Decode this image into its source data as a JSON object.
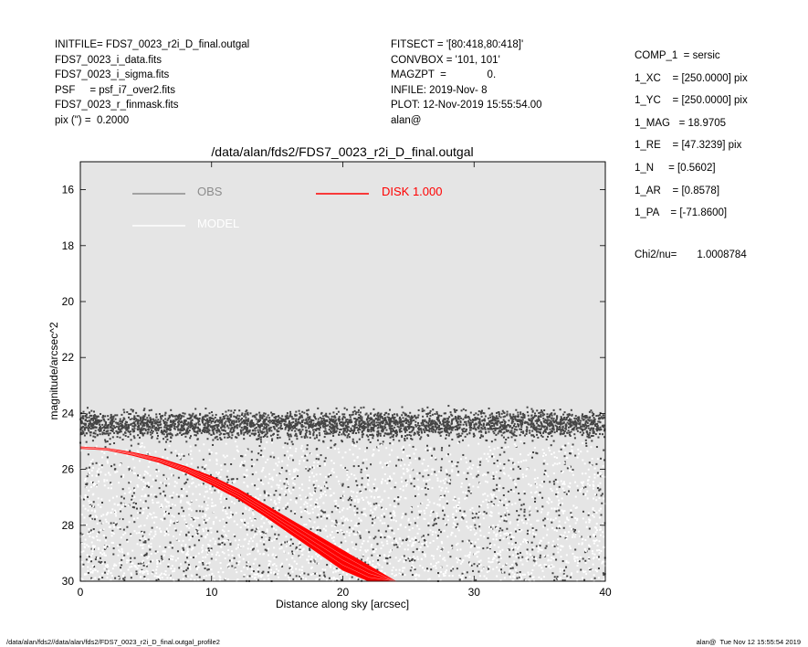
{
  "header_left": [
    "INITFILE= FDS7_0023_r2i_D_final.outgal",
    "FDS7_0023_i_data.fits",
    "FDS7_0023_i_sigma.fits",
    "PSF     = psf_i7_over2.fits",
    "FDS7_0023_r_finmask.fits",
    "pix (\") =  0.2000"
  ],
  "header_mid": [
    "FITSECT = '[80:418,80:418]'",
    "CONVBOX = '101, 101'",
    "MAGZPT  =              0.",
    "INFILE: 2019-Nov- 8",
    "PLOT: 12-Nov-2019 15:55:54.00",
    "alan@"
  ],
  "header_right": [
    "COMP_1  = sersic",
    "1_XC    = [250.0000] pix",
    "1_YC    = [250.0000] pix",
    "1_MAG   = 18.9705",
    "1_RE    = [47.3239] pix",
    "1_N     = [0.5602]",
    "1_AR    = [0.8578]",
    "1_PA    = [-71.8600]"
  ],
  "chi2": {
    "label": "Chi2/nu=",
    "value": "1.0008784"
  },
  "footer_left": "/data/alan/fds2//data/alan/fds2/FDS7_0023_r2i_D_final.outgal_profile2",
  "footer_right": "alan@  Tue Nov 12 15:55:54 2019",
  "colors": {
    "plot_bg": "#e5e5e5",
    "obs": "#444444",
    "obs_legend": "#8c8c8c",
    "model": "#ffffff",
    "disk": "#ff0000"
  },
  "chart_data": {
    "type": "scatter",
    "title": "/data/alan/fds2/FDS7_0023_r2i_D_final.outgal",
    "xlabel": "Distance along sky [arcsec]",
    "ylabel": "magnitude/arcsec^2",
    "xlim": [
      0,
      40
    ],
    "ylim": [
      30,
      15
    ],
    "y_inverted": true,
    "xticks": [
      0,
      10,
      20,
      30,
      40
    ],
    "yticks": [
      16,
      18,
      20,
      22,
      24,
      26,
      28,
      30
    ],
    "legend": [
      {
        "label": "OBS",
        "color": "#8c8c8c"
      },
      {
        "label": "DISK  1.000",
        "color": "#ff0000"
      },
      {
        "label": "MODEL",
        "color": "#ffffff"
      }
    ],
    "series": [
      {
        "name": "OBS",
        "kind": "scatter-band",
        "note_points": "dense cloud of ~thousands of points",
        "upper_band": {
          "x": [
            0,
            40
          ],
          "y_center": 24.4,
          "y_spread": 0.55
        },
        "lower_tail": {
          "x": [
            0,
            40
          ],
          "y_range": [
            24.8,
            30
          ]
        }
      },
      {
        "name": "MODEL",
        "kind": "scatter-band",
        "x": [
          0,
          40
        ],
        "y_range": [
          25.0,
          30
        ]
      },
      {
        "name": "DISK  1.000",
        "kind": "band",
        "x": [
          0,
          2,
          4,
          6,
          8,
          10,
          12,
          14,
          16,
          18,
          20,
          22,
          24
        ],
        "y_upper": [
          25.2,
          25.25,
          25.4,
          25.6,
          25.9,
          26.25,
          26.7,
          27.25,
          27.8,
          28.35,
          28.9,
          29.45,
          30.0
        ],
        "y_lower": [
          25.25,
          25.3,
          25.5,
          25.75,
          26.1,
          26.55,
          27.05,
          27.65,
          28.3,
          28.95,
          29.6,
          30.0,
          30.0
        ]
      }
    ]
  }
}
